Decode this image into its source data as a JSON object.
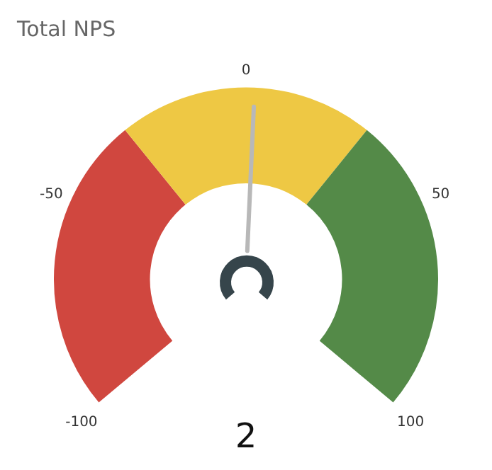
{
  "chart_data": {
    "type": "donut",
    "title": "Total NPS",
    "categories": [
      null,
      null,
      null
    ],
    "values": [
      35,
      30,
      35
    ],
    "colors": [
      "#d0473f",
      "#eec844",
      "#548a48"
    ],
    "annotations": [
      "-100",
      "-50",
      "0",
      "50",
      "100",
      "2"
    ]
  }
}
